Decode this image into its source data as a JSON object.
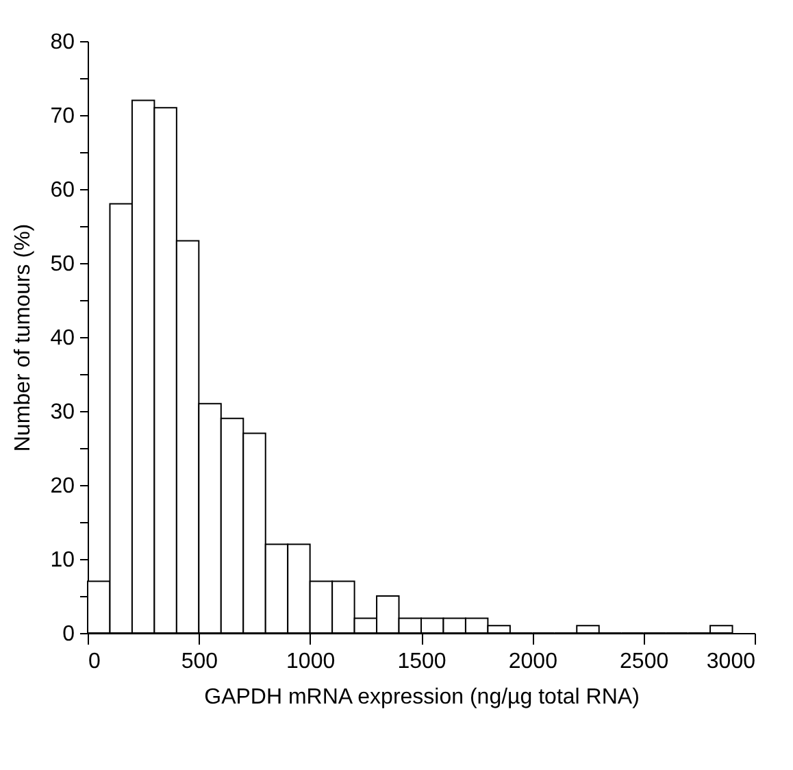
{
  "chart_data": {
    "type": "histogram",
    "xlabel": "GAPDH mRNA expression (ng/µg total RNA)",
    "ylabel": "Number of tumours (%)",
    "bins": [
      0,
      100,
      200,
      300,
      400,
      500,
      600,
      700,
      800,
      900,
      1000,
      1100,
      1200,
      1300,
      1400,
      1500,
      1600,
      1700,
      1800,
      1900,
      2000,
      2100,
      2200,
      2300,
      2400,
      2500,
      2600,
      2700,
      2800,
      2900
    ],
    "values": [
      7,
      58,
      72,
      71,
      53,
      31,
      29,
      27,
      12,
      12,
      7,
      7,
      2,
      5,
      2,
      2,
      2,
      2,
      1,
      0,
      0,
      0,
      1,
      0,
      0,
      0,
      0,
      0,
      1
    ],
    "color": "#ffffff",
    "xlim": [
      0,
      3000
    ],
    "xticks": [
      0,
      500,
      1000,
      1500,
      2000,
      2500,
      3000
    ],
    "ylim": [
      0,
      80
    ],
    "yticks": [
      0,
      {
        "value": 5,
        "label": null
      },
      10,
      {
        "value": 15,
        "label": null
      },
      20,
      {
        "value": 25,
        "label": null
      },
      30,
      {
        "value": 35,
        "label": null
      },
      40,
      {
        "value": 45,
        "label": null
      },
      50,
      {
        "value": 55,
        "label": null
      },
      60,
      {
        "value": 65,
        "label": null
      },
      70,
      {
        "value": 75,
        "label": null
      },
      80
    ],
    "grid": false
  }
}
